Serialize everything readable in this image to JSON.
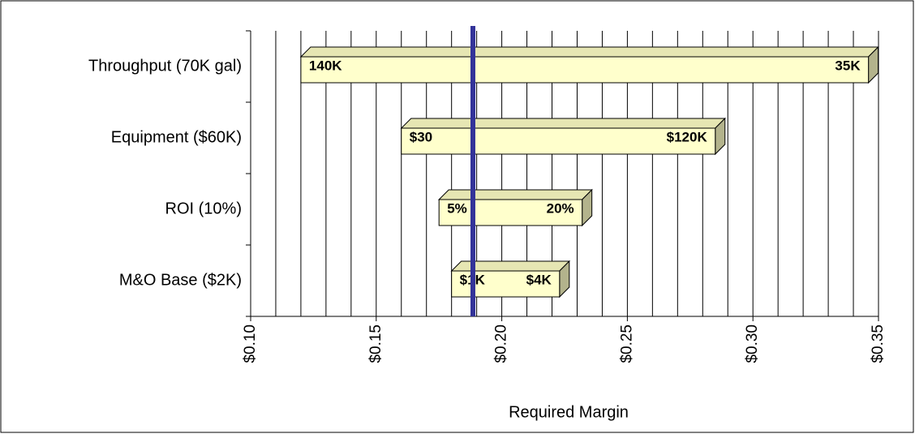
{
  "chart_data": {
    "type": "tornado",
    "categories": [
      "Throughput (70K gal)",
      "Equipment ($60K)",
      "ROI (10%)",
      "M&O Base ($2K)"
    ],
    "low": [
      0.12,
      0.16,
      0.175,
      0.18
    ],
    "high": [
      0.346,
      0.285,
      0.232,
      0.223
    ],
    "low_labels": [
      "140K",
      "$30",
      "5%",
      "$1K"
    ],
    "high_labels": [
      "35K",
      "$120K",
      "20%",
      "$4K"
    ],
    "base": 0.1885,
    "base_color": "#333399",
    "bar_color": "#ffffcc",
    "xlabel": "Required Margin",
    "xlim": [
      0.1,
      0.35
    ],
    "xticks": [
      {
        "value": 0.1,
        "label": "$0.10"
      },
      {
        "value": 0.15,
        "label": "$0.15"
      },
      {
        "value": 0.2,
        "label": "$0.20"
      },
      {
        "value": 0.25,
        "label": "$0.25"
      },
      {
        "value": 0.3,
        "label": "$0.30"
      },
      {
        "value": 0.35,
        "label": "$0.35"
      }
    ],
    "minor_xticks": [
      0.11,
      0.12,
      0.13,
      0.14,
      0.16,
      0.17,
      0.18,
      0.19,
      0.21,
      0.22,
      0.23,
      0.24,
      0.26,
      0.27,
      0.28,
      0.29,
      0.31,
      0.32,
      0.33,
      0.34
    ],
    "grid": true
  }
}
